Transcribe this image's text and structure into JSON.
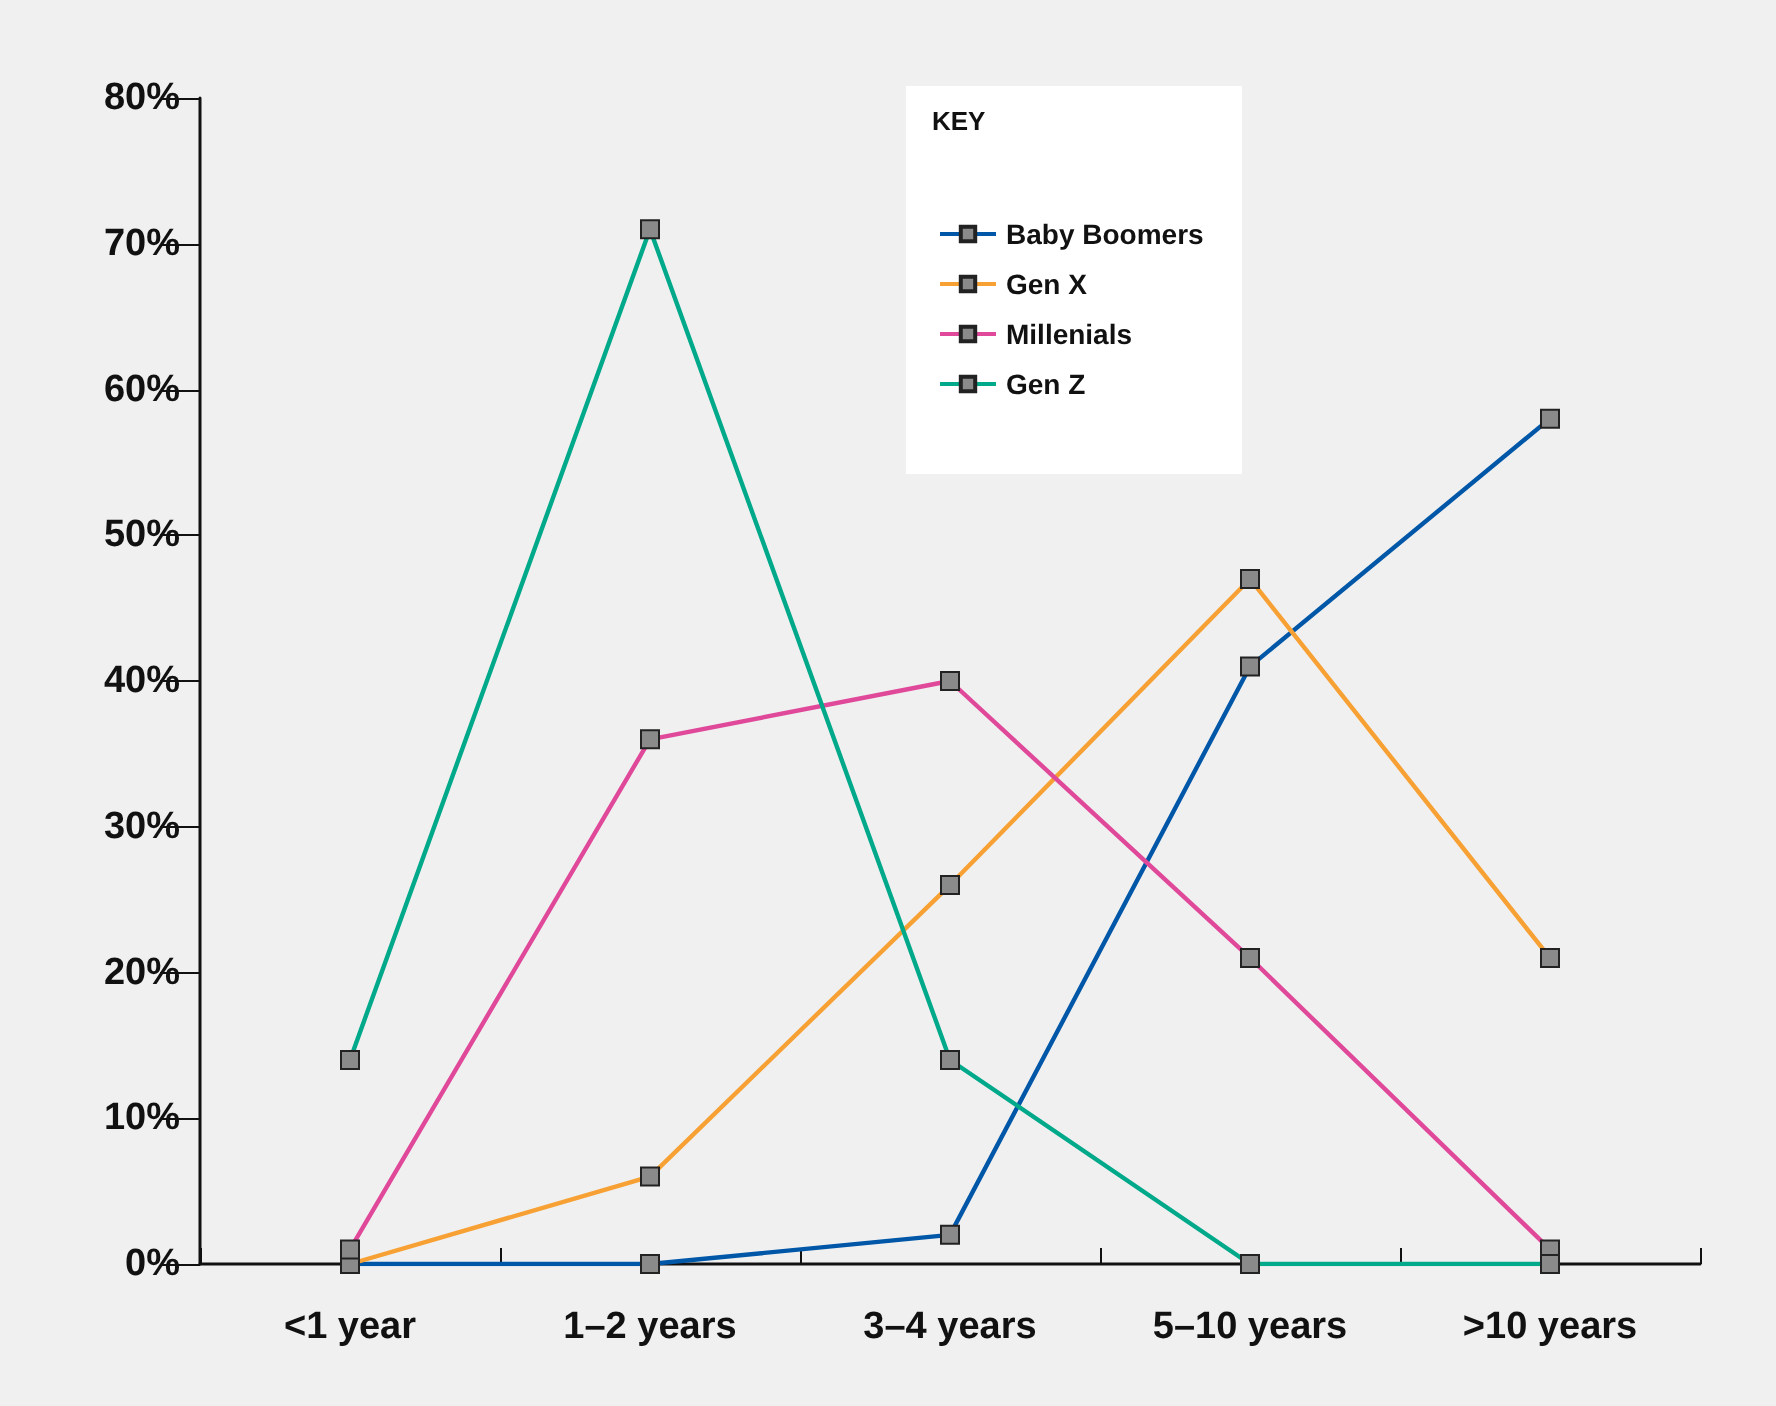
{
  "chart_data": {
    "type": "line",
    "categories": [
      "<1 year",
      "1–2 years",
      "3–4 years",
      "5–10 years",
      ">10 years"
    ],
    "series": [
      {
        "name": "Baby Boomers",
        "color": "#0057a8",
        "values": [
          0,
          0,
          2,
          41,
          58
        ]
      },
      {
        "name": "Gen X",
        "color": "#f7a033",
        "values": [
          0,
          6,
          26,
          47,
          21
        ]
      },
      {
        "name": "Millenials",
        "color": "#e0489a",
        "values": [
          1,
          36,
          40,
          21,
          1
        ]
      },
      {
        "name": "Gen Z",
        "color": "#00a98a",
        "values": [
          14,
          71,
          14,
          0,
          0
        ]
      }
    ],
    "ylim": [
      0,
      80
    ],
    "yticks": [
      {
        "value": 0,
        "label": "0%"
      },
      {
        "value": 10,
        "label": "10%"
      },
      {
        "value": 20,
        "label": "20%"
      },
      {
        "value": 30,
        "label": "30%"
      },
      {
        "value": 40,
        "label": "40%"
      },
      {
        "value": 50,
        "label": "50%"
      },
      {
        "value": 60,
        "label": "60%"
      },
      {
        "value": 70,
        "label": "70%"
      },
      {
        "value": 80,
        "label": "80%"
      }
    ],
    "legend": "top right",
    "legend_title": "KEY",
    "grid": false,
    "marker": "square",
    "line_style": "solid"
  }
}
